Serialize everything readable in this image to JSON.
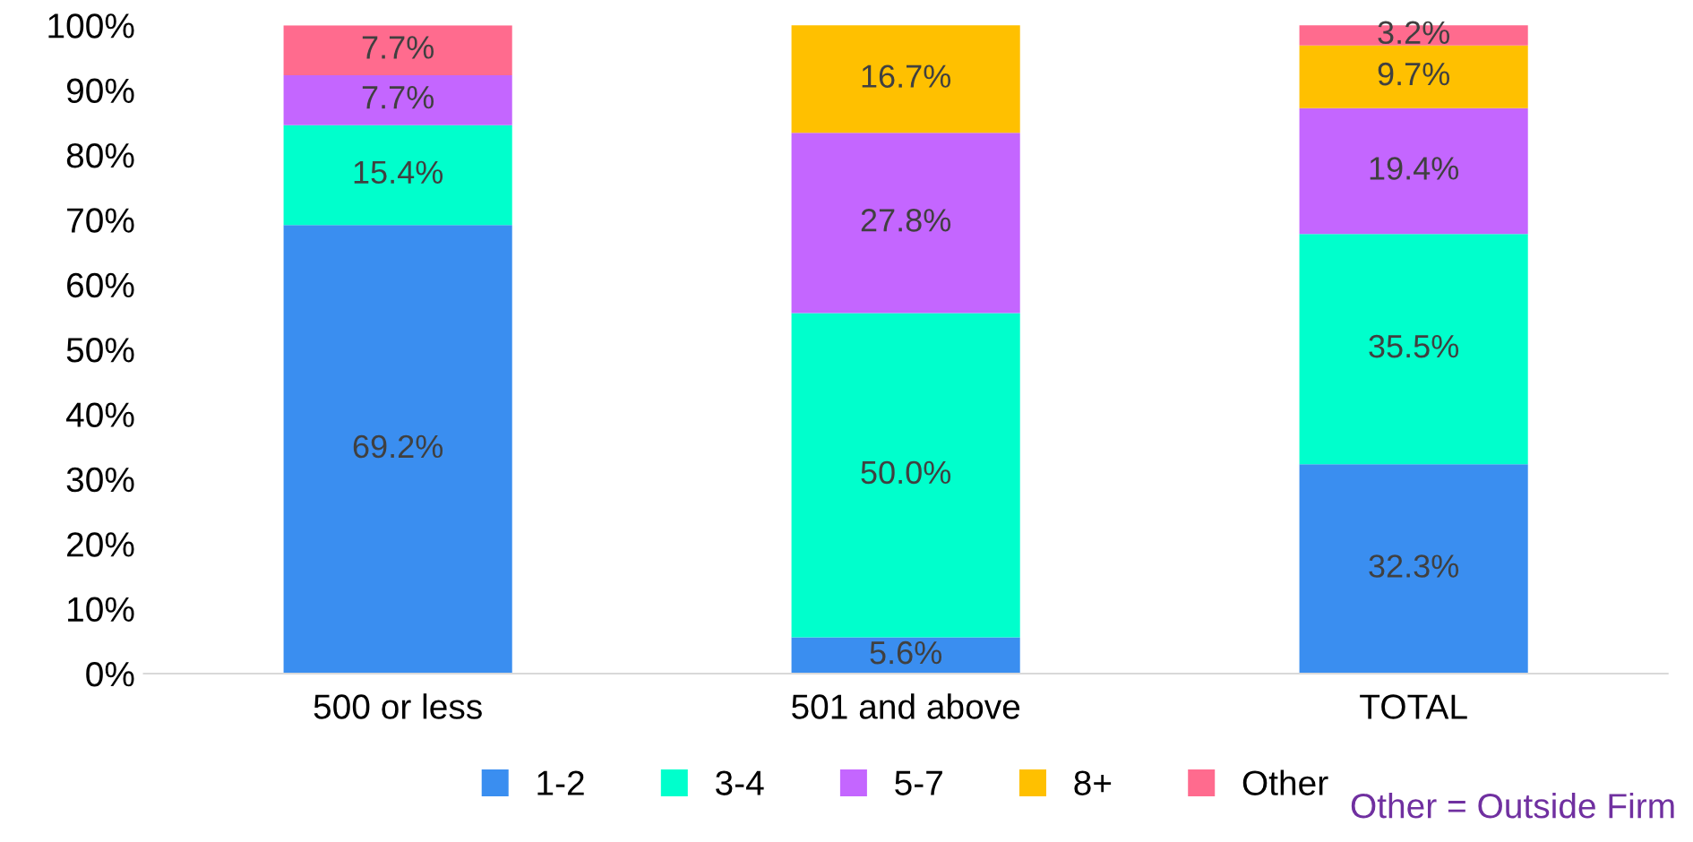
{
  "chart_data": {
    "type": "bar",
    "stacked": true,
    "categories": [
      "500 or less",
      "501 and above",
      "TOTAL"
    ],
    "series": [
      {
        "name": "1-2",
        "color": "#3a8ef0",
        "values": [
          69.2,
          5.6,
          32.3
        ],
        "value_labels": [
          "69.2%",
          "5.6%",
          "32.3%"
        ]
      },
      {
        "name": "3-4",
        "color": "#00ffcc",
        "values": [
          15.4,
          50.0,
          35.5
        ],
        "value_labels": [
          "15.4%",
          "50.0%",
          "35.5%"
        ]
      },
      {
        "name": "5-7",
        "color": "#c466ff",
        "values": [
          7.7,
          27.8,
          19.4
        ],
        "value_labels": [
          "7.7%",
          "27.8%",
          "19.4%"
        ]
      },
      {
        "name": "8+",
        "color": "#ffc000",
        "values": [
          0,
          16.7,
          9.7
        ],
        "value_labels": [
          null,
          "16.7%",
          "9.7%"
        ]
      },
      {
        "name": "Other",
        "color": "#ff6b8e",
        "values": [
          7.7,
          0,
          3.2
        ],
        "value_labels": [
          "7.7%",
          null,
          "3.2%"
        ]
      }
    ],
    "ylim": [
      0,
      100
    ],
    "yticks": [
      {
        "value": 0,
        "label": "0%"
      },
      {
        "value": 10,
        "label": "10%"
      },
      {
        "value": 20,
        "label": "20%"
      },
      {
        "value": 30,
        "label": "30%"
      },
      {
        "value": 40,
        "label": "40%"
      },
      {
        "value": 50,
        "label": "50%"
      },
      {
        "value": 60,
        "label": "60%"
      },
      {
        "value": 70,
        "label": "70%"
      },
      {
        "value": 80,
        "label": "80%"
      },
      {
        "value": 90,
        "label": "90%"
      },
      {
        "value": 100,
        "label": "100%"
      }
    ],
    "grid": false,
    "legend": "bottom",
    "annotations": [
      "Other = Outside Firm"
    ]
  }
}
